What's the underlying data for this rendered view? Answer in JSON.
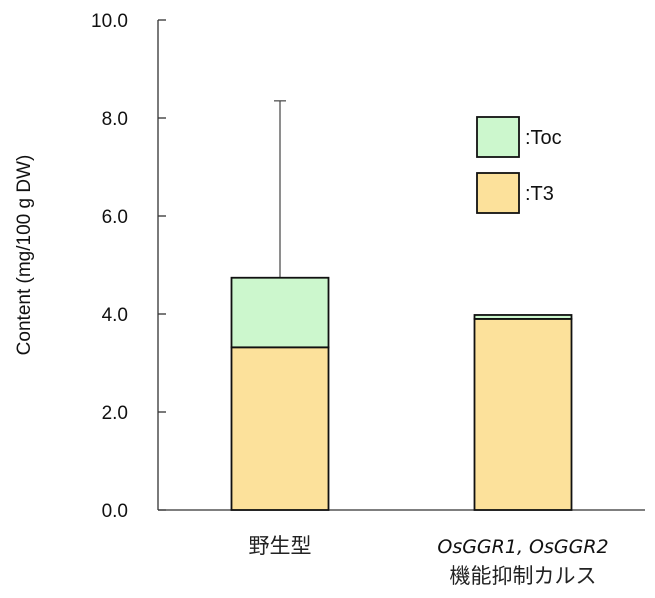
{
  "chart_data": {
    "type": "bar",
    "stacked": true,
    "ylabel": "Content (mg/100 g DW)",
    "ylim": [
      0,
      10
    ],
    "yticks": [
      "0.0",
      "2.0",
      "4.0",
      "6.0",
      "8.0",
      "10.0"
    ],
    "categories": [
      {
        "lines": [
          "野生型"
        ]
      },
      {
        "lines": [
          "OsGGR1, OsGGR2",
          "機能抑制カルス"
        ]
      }
    ],
    "series": [
      {
        "name": ":T3",
        "values": [
          3.32,
          3.9
        ],
        "color": "#FCE19B"
      },
      {
        "name": ":Toc",
        "values": [
          1.42,
          0.08
        ],
        "color": "#CCF7CD"
      }
    ],
    "error_bars": [
      {
        "category_index": 0,
        "top": 8.35
      },
      {
        "category_index": 1,
        "top": null
      }
    ],
    "legend_position": "upper-right",
    "grid": false
  }
}
